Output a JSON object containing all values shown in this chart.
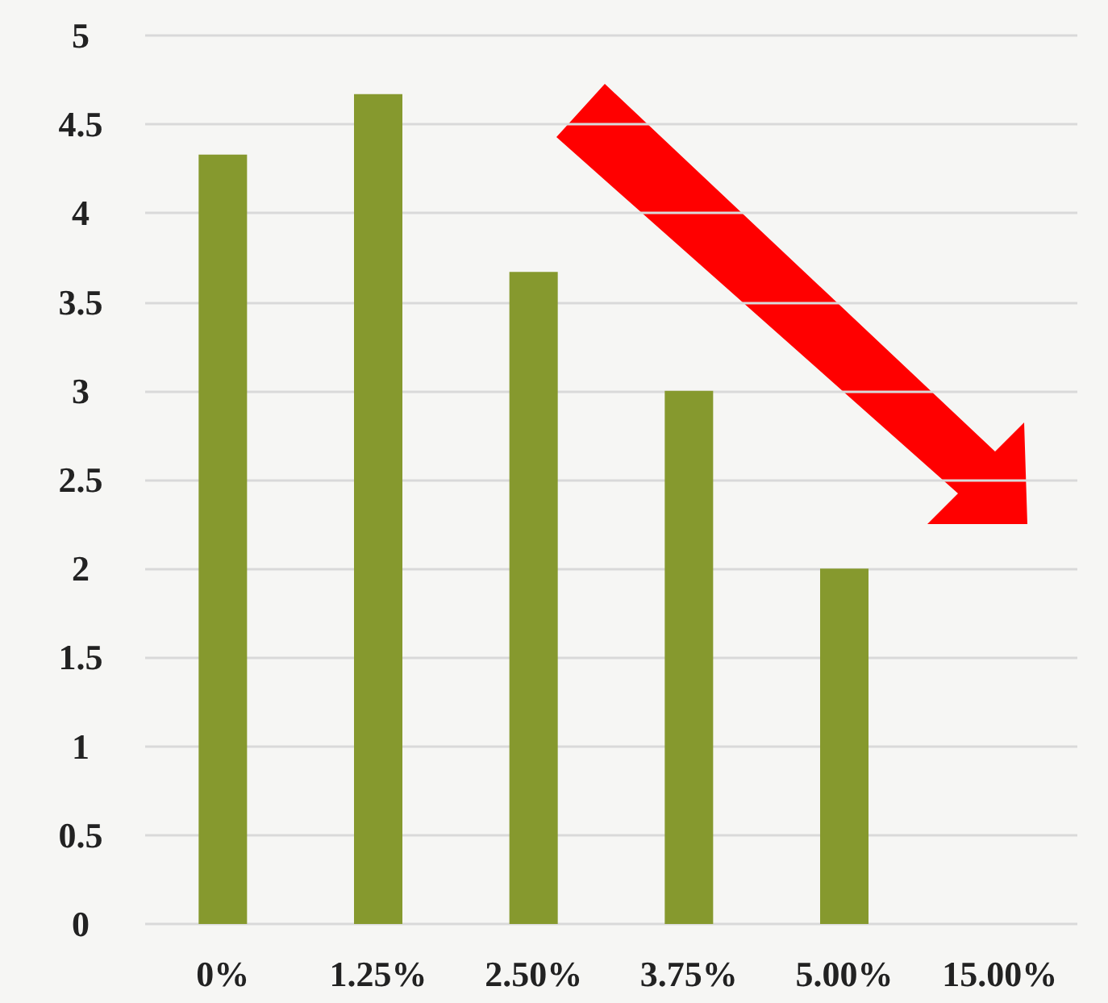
{
  "chart_data": {
    "type": "bar",
    "categories": [
      "0%",
      "1.25%",
      "2.50%",
      "3.75%",
      "5.00%",
      "15.00%"
    ],
    "values": [
      4.33,
      4.67,
      3.67,
      3,
      2,
      0
    ],
    "color": "#86992e",
    "ylim": [
      0,
      5
    ],
    "yticks": [
      0,
      0.5,
      1,
      1.5,
      2,
      2.5,
      3,
      3.5,
      4,
      4.5,
      5
    ],
    "grid": "y"
  }
}
